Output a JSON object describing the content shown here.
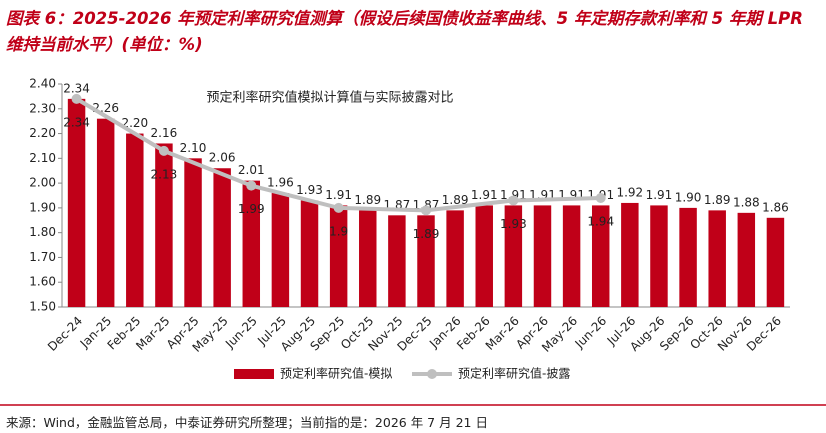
{
  "title": "图表 6：2025-2026 年预定利率研究值测算（假设后续国债收益率曲线、5 年定期存款利率和 5 年期 LPR 维持当前水平）(单位：%)",
  "footer": "来源：Wind，金融监管总局，中泰证券研究所整理；当前指的是：2026 年 7 月 21 日",
  "chart_data": {
    "type": "bar",
    "annotation": "预定利率研究值模拟计算值与实际披露对比",
    "categories": [
      "Dec-24",
      "Jan-25",
      "Feb-25",
      "Mar-25",
      "Apr-25",
      "May-25",
      "Jun-25",
      "Jul-25",
      "Aug-25",
      "Sep-25",
      "Oct-25",
      "Nov-25",
      "Dec-25",
      "Jan-26",
      "Feb-26",
      "Mar-26",
      "Apr-26",
      "May-26",
      "Jun-26",
      "Jul-26",
      "Aug-26",
      "Sep-26",
      "Oct-26",
      "Nov-26",
      "Dec-26"
    ],
    "series": [
      {
        "name": "预定利率研究值-模拟",
        "color": "#c00018",
        "type": "bar",
        "values": [
          2.34,
          2.26,
          2.2,
          2.16,
          2.1,
          2.06,
          2.01,
          1.96,
          1.93,
          1.91,
          1.89,
          1.87,
          1.87,
          1.89,
          1.91,
          1.91,
          1.91,
          1.91,
          1.91,
          1.92,
          1.91,
          1.9,
          1.89,
          1.88,
          1.86
        ],
        "value_labels": [
          "2.34",
          "2.26",
          "2.20",
          "2.16",
          "2.10",
          "2.06",
          "2.01",
          "1.96",
          "1.93",
          "1.91",
          "1.89",
          "1.87",
          "1.87",
          "1.89",
          "1.91",
          "1.91",
          "1.91",
          "1.91",
          "1.91",
          "1.92",
          "1.91",
          "1.90",
          "1.89",
          "1.88",
          "1.86"
        ]
      },
      {
        "name": "预定利率研究值-披露",
        "color": "#bfbfbf",
        "type": "line",
        "x": [
          "Dec-24",
          "Mar-25",
          "Jun-25",
          "Sep-25",
          "Dec-25",
          "Mar-26",
          "Jun-26"
        ],
        "values": [
          2.34,
          2.13,
          1.99,
          1.9,
          1.89,
          1.93,
          1.94
        ]
      }
    ],
    "ylim": [
      1.5,
      2.4
    ],
    "yticks": [
      {
        "value": 1.5,
        "label": "1.50"
      },
      {
        "value": 1.6,
        "label": "1.60"
      },
      {
        "value": 1.7,
        "label": "1.70"
      },
      {
        "value": 1.8,
        "label": "1.80"
      },
      {
        "value": 1.9,
        "label": "1.90"
      },
      {
        "value": 2.0,
        "label": "2.00"
      },
      {
        "value": 2.1,
        "label": "2.10"
      },
      {
        "value": 2.2,
        "label": "2.20"
      },
      {
        "value": 2.3,
        "label": "2.30"
      },
      {
        "value": 2.4,
        "label": "2.40"
      }
    ],
    "grid": false
  }
}
